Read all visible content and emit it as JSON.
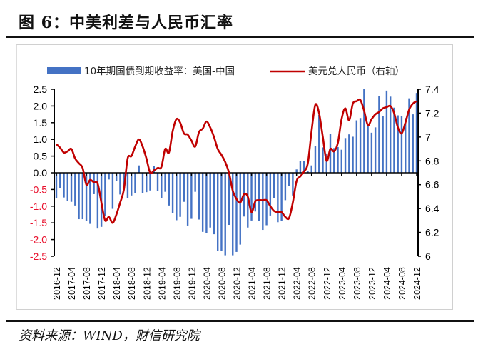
{
  "title": "图 6：中美利差与人民币汇率",
  "source": "资料来源：WIND，财信研究院",
  "chart_data": {
    "type": "bar+line",
    "title": "",
    "legend_placement": "top",
    "x_tick_labels": [
      "2016-12",
      "2017-04",
      "2017-08",
      "2017-12",
      "2018-04",
      "2018-08",
      "2018-12",
      "2019-04",
      "2019-08",
      "2019-12",
      "2020-04",
      "2020-08",
      "2020-12",
      "2021-04",
      "2021-08",
      "2021-12",
      "2022-04",
      "2022-08",
      "2022-12",
      "2023-04",
      "2023-08",
      "2023-12",
      "2024-04",
      "2024-08",
      "2024-12"
    ],
    "x_range": [
      "2016-12",
      "2024-12"
    ],
    "x_frequency": "monthly",
    "left_axis": {
      "range": [
        -2.5,
        2.5
      ],
      "ticks": [
        "2.5",
        "2.0",
        "1.5",
        "1.0",
        "0.5",
        "0.0",
        "-0.5",
        "-1.0",
        "-1.5",
        "-2.0",
        "-2.5"
      ],
      "negative_color": "#e8112d"
    },
    "right_axis": {
      "range": [
        6,
        7.4
      ],
      "ticks": [
        "7.4",
        "7.2",
        "7",
        "6.8",
        "6.6",
        "6.4",
        "6.2",
        "6"
      ]
    },
    "grid": false,
    "series": [
      {
        "name": "10年期国债到期收益率：美国-中国",
        "type": "bar",
        "axis": "left",
        "color": "#4472c4",
        "values": [
          -0.77,
          -0.45,
          -0.74,
          -0.84,
          -0.87,
          -0.98,
          -1.39,
          -1.39,
          -1.44,
          -1.53,
          -0.64,
          -1.67,
          -1.62,
          -1.3,
          -0.2,
          -1.08,
          -0.25,
          -0.65,
          -0.5,
          -0.75,
          -0.68,
          -0.6,
          0.22,
          -0.6,
          -0.58,
          -0.53,
          0.2,
          -0.55,
          -0.75,
          -0.57,
          -0.98,
          -1.2,
          -1.42,
          -1.32,
          -0.87,
          -1.58,
          -1.38,
          -0.57,
          -1.4,
          -1.77,
          -1.8,
          -1.64,
          -1.84,
          -2.35,
          -2.35,
          -2.47,
          -1.56,
          -2.47,
          -2.37,
          -2.15,
          -1.31,
          -1.64,
          -1.43,
          -1.16,
          -1.44,
          -1.71,
          -1.57,
          -1.28,
          -0.75,
          -1.48,
          -1.44,
          -0.82,
          -0.39,
          -0.68,
          0.1,
          0.35,
          0.35,
          0.05,
          0.22,
          0.8,
          1.73,
          0.76,
          0.58,
          1.17,
          0.74,
          0.77,
          0.69,
          1.04,
          1.15,
          1.08,
          1.57,
          1.64,
          2.5,
          1.47,
          1.2,
          1.36,
          2.3,
          1.7,
          2.46,
          2.28,
          1.95,
          1.72,
          1.7,
          1.64,
          2.23,
          1.75,
          2.39
        ]
      },
      {
        "name": "美元兑人民币（右轴）",
        "type": "line",
        "axis": "right",
        "color": "#c00000",
        "values": [
          6.94,
          6.91,
          6.87,
          6.88,
          6.9,
          6.82,
          6.78,
          6.74,
          6.6,
          6.64,
          6.62,
          6.61,
          6.45,
          6.3,
          6.33,
          6.28,
          6.35,
          6.45,
          6.56,
          6.82,
          6.84,
          6.92,
          6.98,
          6.92,
          6.82,
          6.7,
          6.72,
          6.74,
          6.75,
          6.9,
          6.87,
          7.05,
          7.15,
          7.12,
          7.03,
          7.02,
          6.97,
          6.92,
          7.04,
          7.07,
          7.13,
          7.08,
          7.0,
          6.9,
          6.85,
          6.79,
          6.7,
          6.55,
          6.48,
          6.45,
          6.52,
          6.5,
          6.37,
          6.46,
          6.47,
          6.47,
          6.47,
          6.42,
          6.38,
          6.37,
          6.37,
          6.33,
          6.32,
          6.45,
          6.63,
          6.67,
          6.71,
          6.78,
          7.05,
          7.27,
          7.2,
          7.0,
          6.8,
          6.9,
          6.88,
          6.95,
          7.15,
          7.24,
          7.14,
          7.28,
          7.3,
          7.31,
          7.22,
          7.1,
          7.15,
          7.19,
          7.21,
          7.24,
          7.25,
          7.26,
          7.2,
          7.08,
          7.03,
          7.12,
          7.23,
          7.28,
          7.3
        ]
      }
    ]
  }
}
